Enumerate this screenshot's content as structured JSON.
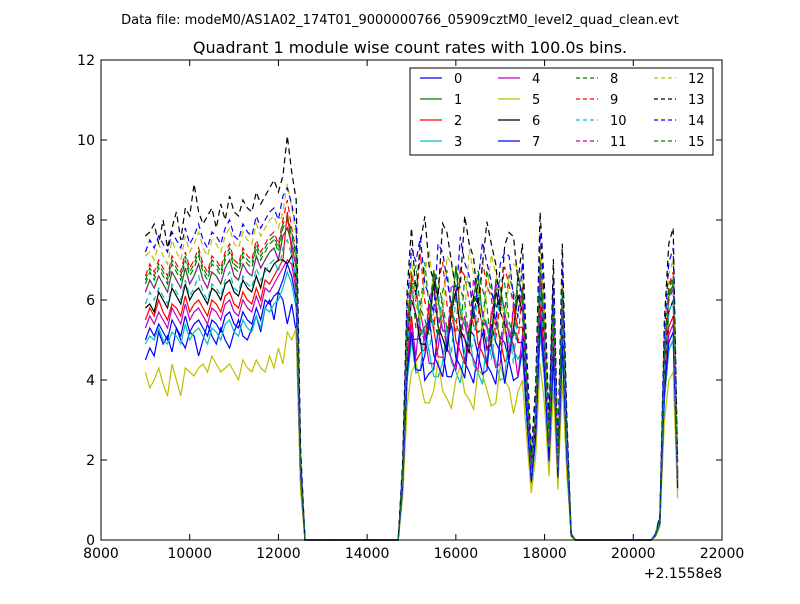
{
  "header": {
    "data_file": "Data file: modeM0/AS1A02_174T01_9000000766_05909cztM0_level2_quad_clean.evt"
  },
  "chart_data": {
    "type": "line",
    "title": "Quadrant 1 module wise count rates with 100.0s bins.",
    "xlabel": "",
    "ylabel": "",
    "x_offset_label": "+2.1558e8",
    "xlim": [
      8000,
      22000
    ],
    "ylim": [
      0,
      12
    ],
    "x_ticks": [
      "8000",
      "10000",
      "12000",
      "14000",
      "16000",
      "18000",
      "20000",
      "22000"
    ],
    "y_ticks": [
      "0",
      "2",
      "4",
      "6",
      "8",
      "10",
      "12"
    ],
    "legend_location": "upper right",
    "x_segments": [
      {
        "start": 9000,
        "end": 12500,
        "step": 100
      },
      {
        "start": 12600,
        "end": 14700,
        "step": 100
      },
      {
        "start": 14800,
        "end": 21000,
        "step": 100
      }
    ],
    "series": [
      {
        "name": "0",
        "color": "#0000ff",
        "style": "solid",
        "level": 5.0,
        "profile": [
          4.5,
          4.8,
          4.6,
          5.2,
          4.9,
          5.1,
          4.7,
          5.3,
          5.0,
          4.8,
          5.2,
          5.1,
          4.6,
          5.0,
          5.4,
          5.1,
          4.9,
          5.3,
          5.0,
          4.8,
          5.2,
          5.5,
          5.1,
          5.0,
          5.3,
          5.6,
          5.2,
          5.8,
          6.0,
          5.5,
          6.2,
          6.0,
          5.4,
          5.9,
          5.2,
          1.4
        ]
      },
      {
        "name": "1",
        "color": "#008000",
        "style": "solid",
        "level": 6.4,
        "profile": [
          6.2,
          6.5,
          6.3,
          6.6,
          6.4,
          6.2,
          6.7,
          6.5,
          6.3,
          6.8,
          6.4,
          6.6,
          6.9,
          6.5,
          6.3,
          6.7,
          6.6,
          6.4,
          6.8,
          7.0,
          6.6,
          6.5,
          6.9,
          6.7,
          6.6,
          7.1,
          6.8,
          7.0,
          7.2,
          7.3,
          7.0,
          7.6,
          7.8,
          7.4,
          6.8,
          1.8
        ]
      },
      {
        "name": "2",
        "color": "#ff0000",
        "style": "solid",
        "level": 5.6,
        "profile": [
          5.5,
          5.8,
          5.6,
          6.0,
          5.7,
          5.5,
          5.9,
          5.8,
          5.6,
          6.1,
          5.7,
          5.9,
          6.0,
          5.8,
          5.6,
          6.0,
          5.9,
          5.7,
          6.1,
          6.2,
          5.9,
          5.8,
          6.2,
          6.0,
          5.9,
          6.3,
          6.0,
          6.5,
          6.4,
          6.6,
          6.8,
          7.0,
          8.2,
          7.2,
          6.4,
          1.6
        ]
      },
      {
        "name": "3",
        "color": "#00bfbf",
        "style": "solid",
        "level": 5.0,
        "profile": [
          4.9,
          5.1,
          5.0,
          5.3,
          5.0,
          4.9,
          5.2,
          5.1,
          4.9,
          5.4,
          5.0,
          5.2,
          5.3,
          5.1,
          4.9,
          5.3,
          5.2,
          5.0,
          5.4,
          5.5,
          5.2,
          5.1,
          5.5,
          5.3,
          5.2,
          5.6,
          5.3,
          5.8,
          5.7,
          5.9,
          6.0,
          6.3,
          6.7,
          6.4,
          5.8,
          1.5
        ]
      },
      {
        "name": "4",
        "color": "#bf00bf",
        "style": "solid",
        "level": 5.4,
        "profile": [
          5.3,
          5.6,
          5.4,
          5.7,
          5.5,
          5.3,
          5.8,
          5.6,
          5.4,
          5.9,
          5.5,
          5.7,
          5.8,
          5.6,
          5.4,
          5.8,
          5.7,
          5.5,
          5.9,
          6.0,
          5.7,
          5.6,
          6.0,
          5.8,
          5.7,
          6.1,
          5.8,
          6.3,
          6.2,
          6.4,
          6.6,
          6.8,
          7.0,
          6.9,
          6.2,
          1.5
        ]
      },
      {
        "name": "5",
        "color": "#bfbf00",
        "style": "solid",
        "level": 4.2,
        "profile": [
          4.2,
          3.8,
          4.0,
          4.3,
          3.9,
          3.6,
          4.4,
          4.0,
          3.6,
          4.3,
          4.2,
          4.1,
          4.3,
          4.4,
          4.2,
          4.6,
          4.4,
          4.2,
          4.3,
          4.4,
          4.2,
          4.0,
          4.5,
          4.3,
          4.2,
          4.5,
          4.3,
          4.2,
          4.6,
          4.3,
          4.8,
          4.4,
          5.2,
          5.0,
          5.3,
          1.2
        ]
      },
      {
        "name": "6",
        "color": "#000000",
        "style": "solid",
        "level": 6.0,
        "profile": [
          5.8,
          5.9,
          5.7,
          6.2,
          6.0,
          5.8,
          6.3,
          6.1,
          5.9,
          6.4,
          6.0,
          6.2,
          6.3,
          6.1,
          5.9,
          6.3,
          6.2,
          6.0,
          6.4,
          6.5,
          6.2,
          6.1,
          6.5,
          6.3,
          6.2,
          6.6,
          6.3,
          6.8,
          6.7,
          6.9,
          7.0,
          7.0,
          6.9,
          7.1,
          6.5,
          1.7
        ]
      },
      {
        "name": "7",
        "color": "#0000ff",
        "style": "solid",
        "level": 5.2,
        "profile": [
          5.0,
          5.3,
          5.1,
          5.4,
          5.2,
          5.0,
          5.5,
          5.3,
          5.1,
          5.6,
          5.2,
          5.4,
          5.5,
          5.3,
          5.1,
          5.5,
          5.4,
          5.2,
          5.6,
          5.7,
          5.4,
          5.3,
          5.7,
          5.5,
          5.4,
          5.8,
          5.5,
          6.0,
          5.9,
          6.1,
          6.2,
          6.5,
          6.9,
          6.6,
          6.0,
          1.6
        ]
      },
      {
        "name": "8",
        "color": "#008000",
        "style": "dashed",
        "level": 6.5,
        "profile": [
          6.4,
          6.7,
          6.5,
          6.8,
          6.6,
          6.4,
          6.9,
          6.7,
          6.5,
          7.0,
          6.6,
          6.8,
          7.1,
          6.7,
          6.5,
          6.9,
          6.8,
          6.6,
          7.0,
          7.2,
          6.8,
          6.7,
          7.1,
          6.9,
          6.8,
          7.3,
          7.0,
          7.2,
          7.4,
          7.5,
          7.2,
          7.8,
          8.0,
          7.6,
          7.0,
          1.9
        ]
      },
      {
        "name": "9",
        "color": "#ff0000",
        "style": "dashed",
        "level": 6.7,
        "profile": [
          6.6,
          6.9,
          6.7,
          7.0,
          6.8,
          6.6,
          7.1,
          6.9,
          6.7,
          7.2,
          6.8,
          7.0,
          7.3,
          6.9,
          6.7,
          7.1,
          7.0,
          6.8,
          7.2,
          7.4,
          7.0,
          6.9,
          7.3,
          7.1,
          7.0,
          7.5,
          7.2,
          7.4,
          7.6,
          7.7,
          7.4,
          8.0,
          8.5,
          7.8,
          7.2,
          2.0
        ]
      },
      {
        "name": "10",
        "color": "#00bfbf",
        "style": "dashed",
        "level": 6.0,
        "profile": [
          5.9,
          6.2,
          6.0,
          6.3,
          6.1,
          5.9,
          6.4,
          6.2,
          6.0,
          6.5,
          6.1,
          6.3,
          6.6,
          6.2,
          6.0,
          6.4,
          6.3,
          6.1,
          6.5,
          6.7,
          6.3,
          6.2,
          6.6,
          6.4,
          6.3,
          6.8,
          6.5,
          6.7,
          6.9,
          7.0,
          6.7,
          7.3,
          7.5,
          7.1,
          6.5,
          1.7
        ]
      },
      {
        "name": "11",
        "color": "#bf00bf",
        "style": "dashed",
        "level": 6.3,
        "profile": [
          6.2,
          6.5,
          6.3,
          6.6,
          6.4,
          6.2,
          6.7,
          6.5,
          6.3,
          6.8,
          6.4,
          6.6,
          6.9,
          6.5,
          6.3,
          6.7,
          6.6,
          6.4,
          6.8,
          7.0,
          6.6,
          6.5,
          6.9,
          6.7,
          6.6,
          7.1,
          6.8,
          7.0,
          7.2,
          7.3,
          7.0,
          7.6,
          7.8,
          7.4,
          6.8,
          1.8
        ]
      },
      {
        "name": "12",
        "color": "#bfbf00",
        "style": "dashed",
        "level": 7.0,
        "profile": [
          7.1,
          7.2,
          7.0,
          7.4,
          7.1,
          6.9,
          7.5,
          7.2,
          7.0,
          7.6,
          7.2,
          7.4,
          7.7,
          7.3,
          7.1,
          7.5,
          7.4,
          7.2,
          7.6,
          7.8,
          7.4,
          7.3,
          7.7,
          7.5,
          7.4,
          7.9,
          7.6,
          7.8,
          8.0,
          8.1,
          7.8,
          8.2,
          8.9,
          8.3,
          7.6,
          2.1
        ]
      },
      {
        "name": "13",
        "color": "#000000",
        "style": "dashed",
        "level": 7.8,
        "profile": [
          7.6,
          7.7,
          7.9,
          7.4,
          8.0,
          7.3,
          7.8,
          8.2,
          7.5,
          8.3,
          8.1,
          8.9,
          8.2,
          7.9,
          8.1,
          8.3,
          7.8,
          8.4,
          8.0,
          8.6,
          8.2,
          8.1,
          8.5,
          8.3,
          8.2,
          8.7,
          8.4,
          8.6,
          8.8,
          9.0,
          8.7,
          9.1,
          10.1,
          9.2,
          8.5,
          2.3
        ]
      },
      {
        "name": "14",
        "color": "#0000ff",
        "style": "dashed",
        "level": 7.3,
        "profile": [
          7.2,
          7.5,
          7.3,
          7.6,
          7.4,
          7.2,
          7.7,
          7.5,
          7.3,
          7.8,
          7.4,
          7.6,
          7.9,
          7.5,
          7.3,
          7.7,
          7.6,
          7.4,
          7.8,
          8.0,
          7.6,
          7.5,
          7.9,
          7.7,
          7.6,
          8.1,
          7.8,
          8.0,
          8.2,
          8.3,
          8.0,
          8.6,
          8.8,
          8.4,
          7.8,
          2.1
        ]
      },
      {
        "name": "15",
        "color": "#008000",
        "style": "dashed",
        "level": 6.6,
        "profile": [
          6.5,
          6.8,
          6.6,
          6.9,
          6.7,
          6.5,
          7.0,
          6.8,
          6.6,
          7.1,
          6.7,
          6.9,
          7.2,
          6.8,
          6.6,
          7.0,
          6.9,
          6.7,
          7.1,
          7.3,
          6.9,
          6.8,
          7.2,
          7.0,
          6.9,
          7.4,
          7.1,
          7.3,
          7.5,
          7.6,
          7.3,
          7.9,
          8.1,
          7.7,
          7.1,
          1.9
        ]
      }
    ]
  }
}
